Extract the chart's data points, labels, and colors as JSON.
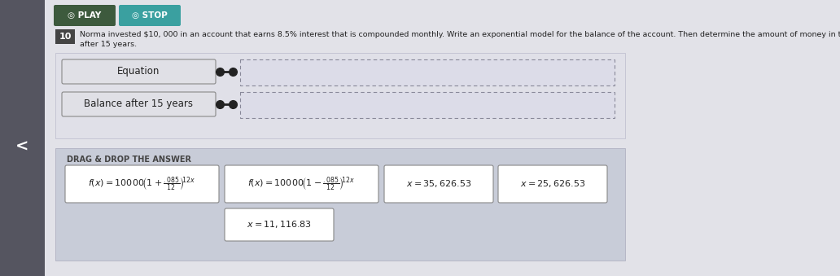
{
  "bg_color": "#d8d8de",
  "main_bg": "#e8e8ed",
  "play_btn_color": "#3d5a3d",
  "stop_btn_color": "#3aa0a0",
  "btn_text_color": "#ffffff",
  "question_num": "10",
  "question_num_bg": "#444444",
  "question_text1": "Norma invested $10, 000 in an account that earns 8.5% interest that is compounded monthly. Write an exponential model for the balance of the account. Then determine the amount of money in the account",
  "question_text2": "after 15 years.",
  "label1": "Equation",
  "label2": "Balance after 15 years",
  "drag_drop_title": "DRAG & DROP THE ANSWER",
  "answer_bg": "#c8ccd8",
  "sidebar_color": "#555560",
  "arrow_char": "<",
  "label_bg": "#e0e0e6",
  "label_border": "#888888",
  "drop_bg": "#dcdce8",
  "drop_border": "#888888",
  "white": "#ffffff",
  "item_border": "#888888",
  "dot_color": "#222222",
  "text_dark": "#222222",
  "text_medium": "#444444"
}
